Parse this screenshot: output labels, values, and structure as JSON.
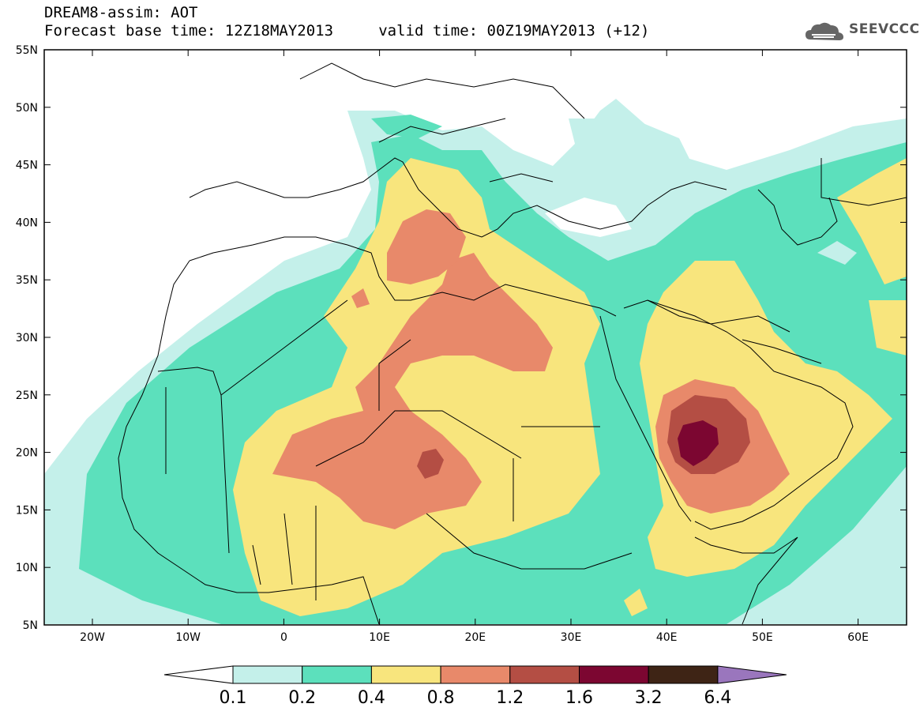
{
  "header": {
    "title_line1": "DREAM8-assim: AOT",
    "title_line2": "Forecast base time: 12Z18MAY2013     valid time: 00Z19MAY2013 (+12)",
    "logo_text": "SEEVCCC"
  },
  "map": {
    "lat_labels": [
      "55N",
      "50N",
      "45N",
      "40N",
      "35N",
      "30N",
      "25N",
      "20N",
      "15N",
      "10N",
      "5N"
    ],
    "lon_labels": [
      "20W",
      "10W",
      "0",
      "10E",
      "20E",
      "30E",
      "40E",
      "50E",
      "60E"
    ]
  },
  "colorbar": {
    "labels": [
      "0.1",
      "0.2",
      "0.4",
      "0.8",
      "1.2",
      "1.6",
      "3.2",
      "6.4"
    ],
    "colors": [
      "#c4f0ea",
      "#5ce0bc",
      "#f8e57d",
      "#e8896a",
      "#b44e44",
      "#7c0631",
      "#3e2415",
      "#9a76bd"
    ],
    "under_color": "#ffffff"
  },
  "colors": {
    "class_01_02": "#c4f0ea",
    "class_02_04": "#5ce0bc",
    "class_04_08": "#f8e57d",
    "class_08_12": "#e8896a",
    "class_12_16": "#b44e44",
    "class_16_32": "#7c0631",
    "class_32_64": "#3e2415",
    "class_over_64": "#9a76bd"
  }
}
